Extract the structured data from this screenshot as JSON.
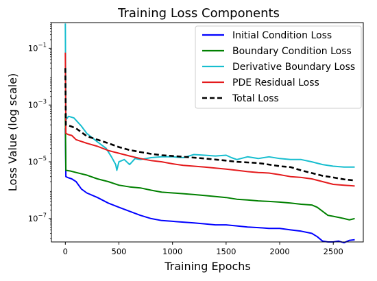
{
  "chart_data": {
    "type": "line",
    "title": "Training Loss Components",
    "xlabel": "Training Epochs",
    "ylabel": "Loss Value (log scale)",
    "xscale": "linear",
    "yscale": "log",
    "xlim": [
      -130,
      2780
    ],
    "ylim": [
      1.5e-08,
      0.8
    ],
    "xticks": [
      0,
      500,
      1000,
      1500,
      2000,
      2500
    ],
    "yticks": [
      {
        "value": 1e-07,
        "base": "10",
        "exp": "−7"
      },
      {
        "value": 1e-05,
        "base": "10",
        "exp": "−5"
      },
      {
        "value": 0.001,
        "base": "10",
        "exp": "−3"
      },
      {
        "value": 0.1,
        "base": "10",
        "exp": "−1"
      }
    ],
    "grid": false,
    "legend_position": "top-right",
    "series": [
      {
        "name": "Initial Condition Loss",
        "color": "#0000ff",
        "style": "solid",
        "points": [
          [
            0,
            0.00015
          ],
          [
            5,
            3e-06
          ],
          [
            20,
            2.8e-06
          ],
          [
            60,
            2.5e-06
          ],
          [
            100,
            2e-06
          ],
          [
            150,
            1.1e-06
          ],
          [
            200,
            8e-07
          ],
          [
            300,
            5.5e-07
          ],
          [
            400,
            3.5e-07
          ],
          [
            500,
            2.5e-07
          ],
          [
            600,
            1.8e-07
          ],
          [
            700,
            1.3e-07
          ],
          [
            800,
            1e-07
          ],
          [
            900,
            8.5e-08
          ],
          [
            1000,
            8e-08
          ],
          [
            1100,
            7.5e-08
          ],
          [
            1200,
            7e-08
          ],
          [
            1300,
            6.5e-08
          ],
          [
            1400,
            6e-08
          ],
          [
            1500,
            6e-08
          ],
          [
            1600,
            5.5e-08
          ],
          [
            1700,
            5e-08
          ],
          [
            1800,
            4.8e-08
          ],
          [
            1900,
            4.5e-08
          ],
          [
            2000,
            4.5e-08
          ],
          [
            2100,
            4e-08
          ],
          [
            2200,
            3.6e-08
          ],
          [
            2300,
            3e-08
          ],
          [
            2350,
            2.3e-08
          ],
          [
            2400,
            1.6e-08
          ],
          [
            2450,
            1.5e-08
          ],
          [
            2500,
            1.5e-08
          ],
          [
            2550,
            1.6e-08
          ],
          [
            2600,
            1.4e-08
          ],
          [
            2650,
            1.7e-08
          ],
          [
            2700,
            1.8e-08
          ]
        ]
      },
      {
        "name": "Boundary Condition Loss",
        "color": "#008000",
        "style": "solid",
        "points": [
          [
            0,
            0.0005
          ],
          [
            5,
            5e-06
          ],
          [
            50,
            4.7e-06
          ],
          [
            100,
            4.2e-06
          ],
          [
            200,
            3.4e-06
          ],
          [
            300,
            2.5e-06
          ],
          [
            400,
            2e-06
          ],
          [
            500,
            1.5e-06
          ],
          [
            600,
            1.3e-06
          ],
          [
            700,
            1.2e-06
          ],
          [
            800,
            1e-06
          ],
          [
            900,
            8.5e-07
          ],
          [
            1000,
            8e-07
          ],
          [
            1100,
            7.5e-07
          ],
          [
            1200,
            7e-07
          ],
          [
            1300,
            6.5e-07
          ],
          [
            1400,
            6e-07
          ],
          [
            1500,
            5.5e-07
          ],
          [
            1600,
            4.8e-07
          ],
          [
            1700,
            4.5e-07
          ],
          [
            1800,
            4.2e-07
          ],
          [
            1900,
            4e-07
          ],
          [
            2000,
            3.8e-07
          ],
          [
            2100,
            3.5e-07
          ],
          [
            2200,
            3.2e-07
          ],
          [
            2300,
            3e-07
          ],
          [
            2350,
            2.5e-07
          ],
          [
            2400,
            1.8e-07
          ],
          [
            2450,
            1.3e-07
          ],
          [
            2500,
            1.2e-07
          ],
          [
            2550,
            1.1e-07
          ],
          [
            2600,
            1e-07
          ],
          [
            2650,
            9e-08
          ],
          [
            2700,
            1e-07
          ]
        ]
      },
      {
        "name": "Derivative Boundary Loss",
        "color": "#17becf",
        "style": "solid",
        "points": [
          [
            0,
            0.75
          ],
          [
            5,
            0.0003
          ],
          [
            30,
            0.0004
          ],
          [
            80,
            0.00035
          ],
          [
            150,
            0.00018
          ],
          [
            200,
            0.0001
          ],
          [
            300,
            5e-05
          ],
          [
            380,
            3e-05
          ],
          [
            430,
            1.5e-05
          ],
          [
            470,
            8e-06
          ],
          [
            480,
            5e-06
          ],
          [
            500,
            1e-05
          ],
          [
            550,
            1.2e-05
          ],
          [
            600,
            8e-06
          ],
          [
            650,
            1.3e-05
          ],
          [
            700,
            1.2e-05
          ],
          [
            800,
            1.4e-05
          ],
          [
            900,
            1.5e-05
          ],
          [
            1000,
            1.5e-05
          ],
          [
            1100,
            1.4e-05
          ],
          [
            1200,
            1.8e-05
          ],
          [
            1300,
            1.7e-05
          ],
          [
            1400,
            1.6e-05
          ],
          [
            1500,
            1.7e-05
          ],
          [
            1550,
            1.4e-05
          ],
          [
            1600,
            1.2e-05
          ],
          [
            1700,
            1.5e-05
          ],
          [
            1800,
            1.3e-05
          ],
          [
            1900,
            1.5e-05
          ],
          [
            2000,
            1.3e-05
          ],
          [
            2100,
            1.2e-05
          ],
          [
            2200,
            1.2e-05
          ],
          [
            2300,
            1e-05
          ],
          [
            2400,
            8e-06
          ],
          [
            2500,
            7e-06
          ],
          [
            2600,
            6.5e-06
          ],
          [
            2700,
            6.5e-06
          ]
        ]
      },
      {
        "name": "PDE Residual Loss",
        "color": "#e41a1c",
        "style": "solid",
        "points": [
          [
            0,
            0.07
          ],
          [
            5,
            0.0001
          ],
          [
            30,
            9e-05
          ],
          [
            60,
            8.5e-05
          ],
          [
            100,
            6e-05
          ],
          [
            200,
            4.5e-05
          ],
          [
            300,
            3.5e-05
          ],
          [
            400,
            2.5e-05
          ],
          [
            500,
            2e-05
          ],
          [
            600,
            1.6e-05
          ],
          [
            700,
            1.3e-05
          ],
          [
            800,
            1.1e-05
          ],
          [
            900,
            1e-05
          ],
          [
            1000,
            8.5e-06
          ],
          [
            1100,
            7.5e-06
          ],
          [
            1200,
            7e-06
          ],
          [
            1300,
            6.5e-06
          ],
          [
            1400,
            6e-06
          ],
          [
            1500,
            5.5e-06
          ],
          [
            1600,
            5e-06
          ],
          [
            1700,
            4.5e-06
          ],
          [
            1800,
            4.2e-06
          ],
          [
            1900,
            4e-06
          ],
          [
            2000,
            3.5e-06
          ],
          [
            2100,
            3e-06
          ],
          [
            2200,
            2.8e-06
          ],
          [
            2300,
            2.5e-06
          ],
          [
            2400,
            2e-06
          ],
          [
            2500,
            1.6e-06
          ],
          [
            2600,
            1.5e-06
          ],
          [
            2700,
            1.4e-06
          ]
        ]
      },
      {
        "name": "Total Loss",
        "color": "#000000",
        "style": "dashed",
        "points": [
          [
            0,
            0.02
          ],
          [
            5,
            0.0002
          ],
          [
            50,
            0.00018
          ],
          [
            100,
            0.00015
          ],
          [
            200,
            8e-05
          ],
          [
            300,
            6e-05
          ],
          [
            400,
            4.5e-05
          ],
          [
            500,
            3.3e-05
          ],
          [
            600,
            2.6e-05
          ],
          [
            700,
            2.2e-05
          ],
          [
            800,
            1.9e-05
          ],
          [
            900,
            1.7e-05
          ],
          [
            1000,
            1.6e-05
          ],
          [
            1100,
            1.5e-05
          ],
          [
            1200,
            1.4e-05
          ],
          [
            1300,
            1.3e-05
          ],
          [
            1400,
            1.2e-05
          ],
          [
            1500,
            1.1e-05
          ],
          [
            1600,
            1e-05
          ],
          [
            1700,
            9.5e-06
          ],
          [
            1800,
            9e-06
          ],
          [
            1900,
            8e-06
          ],
          [
            2000,
            7e-06
          ],
          [
            2100,
            6.5e-06
          ],
          [
            2200,
            5e-06
          ],
          [
            2300,
            4e-06
          ],
          [
            2400,
            3.2e-06
          ],
          [
            2500,
            2.8e-06
          ],
          [
            2600,
            2.4e-06
          ],
          [
            2700,
            2.2e-06
          ]
        ]
      }
    ]
  }
}
